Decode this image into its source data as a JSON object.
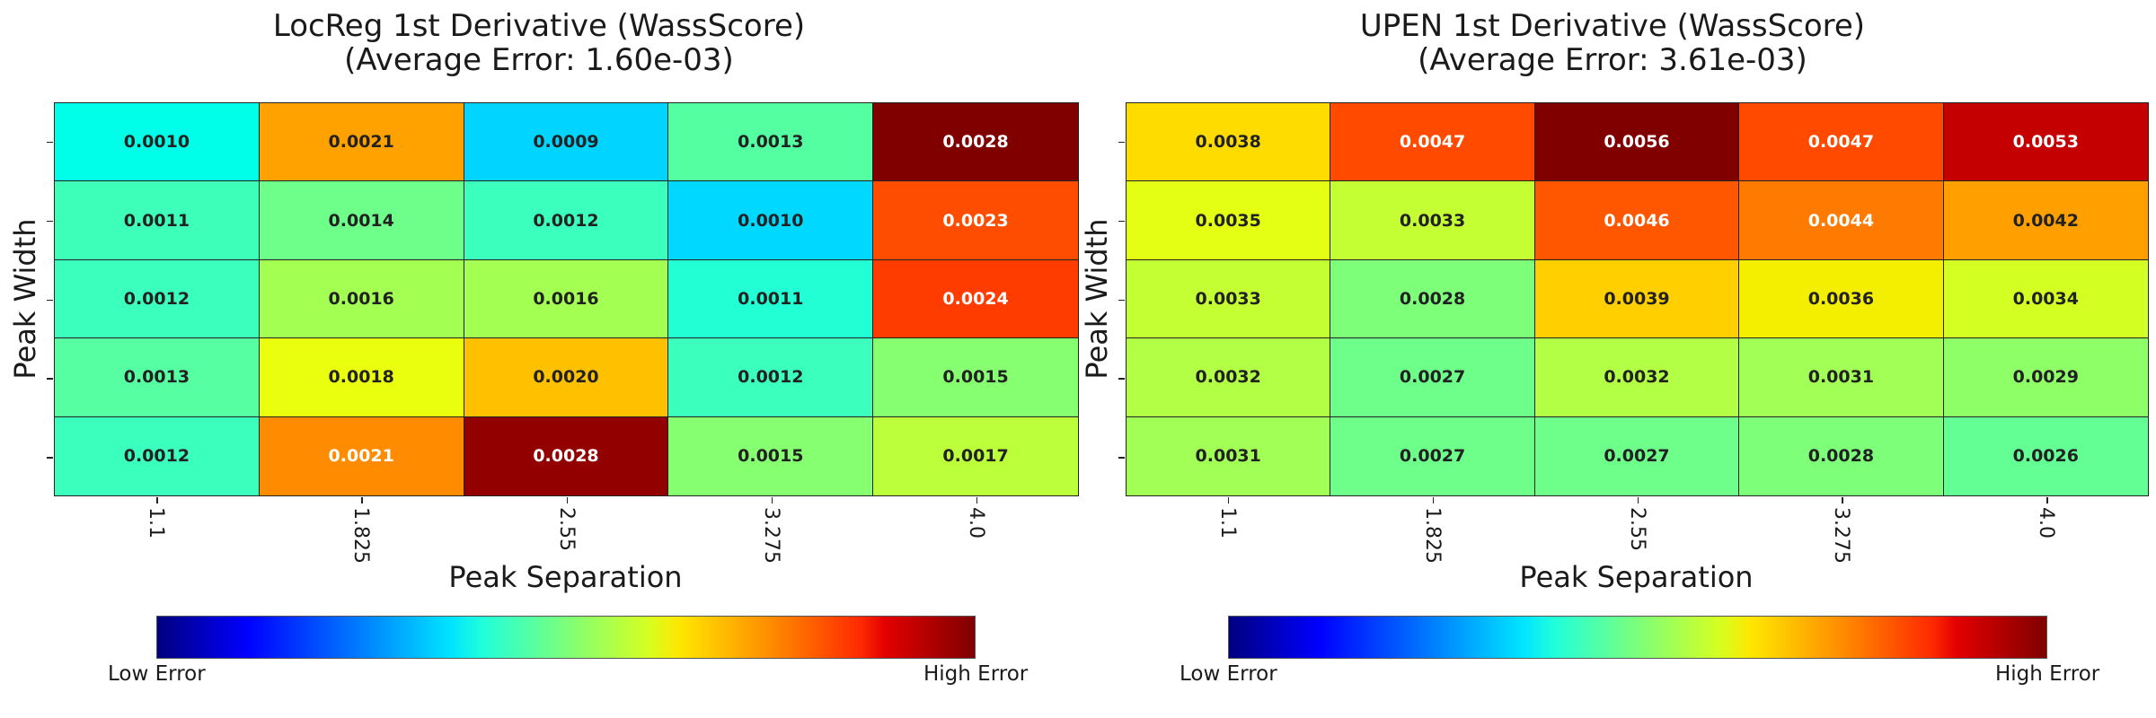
{
  "chart_data": [
    {
      "type": "heatmap",
      "title": "LocReg 1st Derivative (WassScore)",
      "subtitle": "(Average Error: 1.60e-03)",
      "xlabel": "Peak Separation",
      "ylabel": "Peak Width",
      "x_ticks": [
        "1.1",
        "1.825",
        "2.55",
        "3.275",
        "4.0"
      ],
      "y_ticks": [
        "",
        "",
        "",
        "",
        ""
      ],
      "colormap": "jet",
      "colorbar": {
        "low_label": "Low Error",
        "high_label": "High Error",
        "orientation": "horizontal",
        "placement": "bottom"
      },
      "values": [
        [
          "0.0010",
          "0.0021",
          "0.0009",
          "0.0013",
          "0.0028"
        ],
        [
          "0.0011",
          "0.0014",
          "0.0012",
          "0.0010",
          "0.0023"
        ],
        [
          "0.0012",
          "0.0016",
          "0.0016",
          "0.0011",
          "0.0024"
        ],
        [
          "0.0013",
          "0.0018",
          "0.0020",
          "0.0012",
          "0.0015"
        ],
        [
          "0.0012",
          "0.0021",
          "0.0028",
          "0.0015",
          "0.0017"
        ]
      ],
      "cell_colors": [
        [
          "#00ffe8",
          "#ffa200",
          "#00d4ff",
          "#54ffa2",
          "#800000"
        ],
        [
          "#3dffba",
          "#6dff8a",
          "#3affbd",
          "#00d8ff",
          "#ff4d00"
        ],
        [
          "#3affbd",
          "#a4ff53",
          "#a4ff53",
          "#22ffd5",
          "#ff3c00"
        ],
        [
          "#55ffa2",
          "#eaff0d",
          "#ffc000",
          "#3affbd",
          "#86ff71"
        ],
        [
          "#3affbd",
          "#ff8c00",
          "#930000",
          "#86ff71",
          "#bcff3b"
        ]
      ],
      "text_colors": [
        [
          "#222222",
          "#222222",
          "#222222",
          "#222222",
          "#ffffff"
        ],
        [
          "#222222",
          "#222222",
          "#222222",
          "#222222",
          "#ffffff"
        ],
        [
          "#222222",
          "#222222",
          "#222222",
          "#222222",
          "#ffffff"
        ],
        [
          "#222222",
          "#222222",
          "#222222",
          "#222222",
          "#222222"
        ],
        [
          "#222222",
          "#ffffff",
          "#ffffff",
          "#222222",
          "#222222"
        ]
      ]
    },
    {
      "type": "heatmap",
      "title": "UPEN 1st Derivative (WassScore)",
      "subtitle": "(Average Error: 3.61e-03)",
      "xlabel": "Peak Separation",
      "ylabel": "Peak Width",
      "x_ticks": [
        "1.1",
        "1.825",
        "2.55",
        "3.275",
        "4.0"
      ],
      "y_ticks": [
        "",
        "",
        "",
        "",
        ""
      ],
      "colormap": "jet",
      "colorbar": {
        "low_label": "Low Error",
        "high_label": "High Error",
        "orientation": "horizontal",
        "placement": "bottom"
      },
      "values": [
        [
          "0.0038",
          "0.0047",
          "0.0056",
          "0.0047",
          "0.0053"
        ],
        [
          "0.0035",
          "0.0033",
          "0.0046",
          "0.0044",
          "0.0042"
        ],
        [
          "0.0033",
          "0.0028",
          "0.0039",
          "0.0036",
          "0.0034"
        ],
        [
          "0.0032",
          "0.0027",
          "0.0032",
          "0.0031",
          "0.0029"
        ],
        [
          "0.0031",
          "0.0027",
          "0.0027",
          "0.0028",
          "0.0026"
        ]
      ],
      "cell_colors": [
        [
          "#ffdc00",
          "#ff4a00",
          "#800000",
          "#ff4a00",
          "#c40000"
        ],
        [
          "#e4ff13",
          "#c4ff33",
          "#ff5700",
          "#ff7a00",
          "#ffa000"
        ],
        [
          "#c4ff33",
          "#7dff7a",
          "#ffcf00",
          "#f4ee00",
          "#d4ff23"
        ],
        [
          "#b2ff45",
          "#6dff8a",
          "#b2ff45",
          "#a2ff55",
          "#8fff68"
        ],
        [
          "#a2ff55",
          "#6dff8a",
          "#6dff8a",
          "#7dff7a",
          "#63ff94"
        ]
      ],
      "text_colors": [
        [
          "#222222",
          "#ffffff",
          "#ffffff",
          "#ffffff",
          "#ffffff"
        ],
        [
          "#222222",
          "#222222",
          "#ffffff",
          "#ffffff",
          "#222222"
        ],
        [
          "#222222",
          "#222222",
          "#222222",
          "#222222",
          "#222222"
        ],
        [
          "#222222",
          "#222222",
          "#222222",
          "#222222",
          "#222222"
        ],
        [
          "#222222",
          "#222222",
          "#222222",
          "#222222",
          "#222222"
        ]
      ]
    }
  ]
}
